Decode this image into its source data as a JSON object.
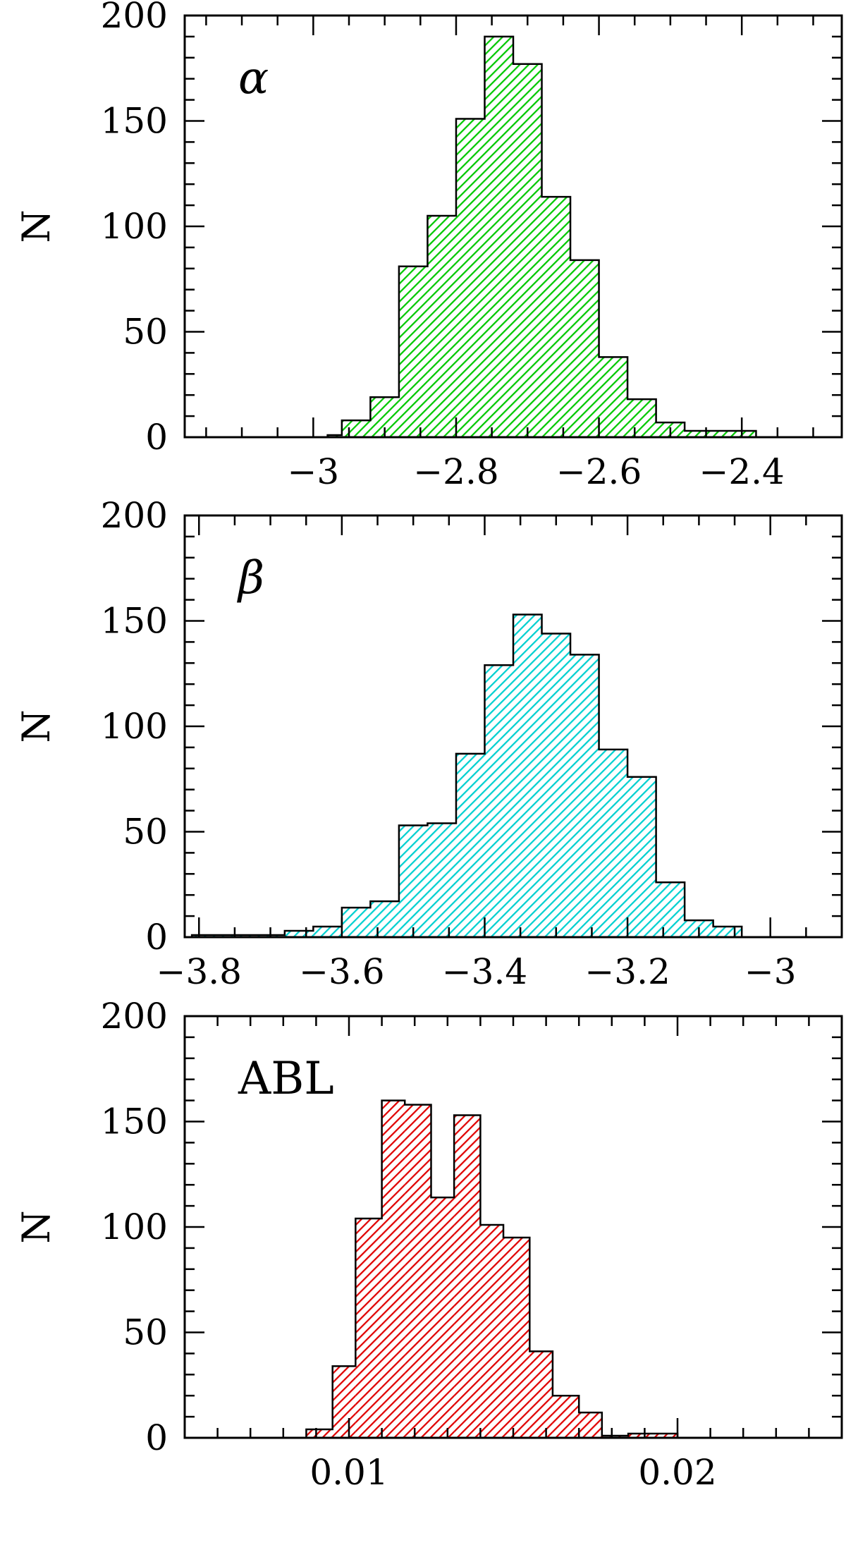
{
  "chart_data": [
    {
      "type": "bar",
      "label": "α",
      "ylabel": "N",
      "color": "#00c800",
      "xlim": [
        -3.18,
        -2.26
      ],
      "ylim": [
        0,
        200
      ],
      "y_ticks": [
        0,
        50,
        100,
        150,
        200
      ],
      "x_ticks": [
        -3,
        -2.8,
        -2.6,
        -2.4
      ],
      "x_tick_labels": [
        "−3",
        "−2.8",
        "−2.6",
        "−2.4"
      ],
      "x_minor": 0.05,
      "y_minor": 10,
      "bins": [
        {
          "x0": -2.98,
          "x1": -2.96,
          "value": 1
        },
        {
          "x0": -2.96,
          "x1": -2.92,
          "value": 8
        },
        {
          "x0": -2.92,
          "x1": -2.88,
          "value": 19
        },
        {
          "x0": -2.88,
          "x1": -2.84,
          "value": 81
        },
        {
          "x0": -2.84,
          "x1": -2.8,
          "value": 105
        },
        {
          "x0": -2.8,
          "x1": -2.76,
          "value": 151
        },
        {
          "x0": -2.76,
          "x1": -2.72,
          "value": 190
        },
        {
          "x0": -2.72,
          "x1": -2.68,
          "value": 177
        },
        {
          "x0": -2.68,
          "x1": -2.64,
          "value": 114
        },
        {
          "x0": -2.64,
          "x1": -2.6,
          "value": 84
        },
        {
          "x0": -2.6,
          "x1": -2.56,
          "value": 38
        },
        {
          "x0": -2.56,
          "x1": -2.52,
          "value": 18
        },
        {
          "x0": -2.52,
          "x1": -2.48,
          "value": 7
        },
        {
          "x0": -2.48,
          "x1": -2.44,
          "value": 3
        },
        {
          "x0": -2.44,
          "x1": -2.38,
          "value": 3
        }
      ]
    },
    {
      "type": "bar",
      "label": "β",
      "ylabel": "N",
      "color": "#00d0d0",
      "xlim": [
        -3.82,
        -2.9
      ],
      "ylim": [
        0,
        200
      ],
      "y_ticks": [
        0,
        50,
        100,
        150,
        200
      ],
      "x_ticks": [
        -3.8,
        -3.6,
        -3.4,
        -3.2,
        -3
      ],
      "x_tick_labels": [
        "−3.8",
        "−3.6",
        "−3.4",
        "−3.2",
        "−3"
      ],
      "x_minor": 0.05,
      "y_minor": 10,
      "bins": [
        {
          "x0": -3.81,
          "x1": -3.68,
          "value": 1
        },
        {
          "x0": -3.68,
          "x1": -3.64,
          "value": 3
        },
        {
          "x0": -3.64,
          "x1": -3.6,
          "value": 5
        },
        {
          "x0": -3.6,
          "x1": -3.56,
          "value": 14
        },
        {
          "x0": -3.56,
          "x1": -3.52,
          "value": 17
        },
        {
          "x0": -3.52,
          "x1": -3.48,
          "value": 53
        },
        {
          "x0": -3.48,
          "x1": -3.44,
          "value": 54
        },
        {
          "x0": -3.44,
          "x1": -3.4,
          "value": 87
        },
        {
          "x0": -3.4,
          "x1": -3.36,
          "value": 129
        },
        {
          "x0": -3.36,
          "x1": -3.32,
          "value": 153
        },
        {
          "x0": -3.32,
          "x1": -3.28,
          "value": 144
        },
        {
          "x0": -3.28,
          "x1": -3.24,
          "value": 134
        },
        {
          "x0": -3.24,
          "x1": -3.2,
          "value": 89
        },
        {
          "x0": -3.2,
          "x1": -3.16,
          "value": 76
        },
        {
          "x0": -3.16,
          "x1": -3.12,
          "value": 26
        },
        {
          "x0": -3.12,
          "x1": -3.08,
          "value": 8
        },
        {
          "x0": -3.08,
          "x1": -3.04,
          "value": 5
        }
      ]
    },
    {
      "type": "bar",
      "label": "ABL",
      "ylabel": "N",
      "color": "#e00000",
      "xlim": [
        0.005,
        0.025
      ],
      "ylim": [
        0,
        200
      ],
      "y_ticks": [
        0,
        50,
        100,
        150,
        200
      ],
      "x_ticks": [
        0.01,
        0.02
      ],
      "x_tick_labels": [
        "0.01",
        "0.02"
      ],
      "x_minor": 0.001,
      "y_minor": 10,
      "bins": [
        {
          "x0": 0.0087,
          "x1": 0.0095,
          "value": 4
        },
        {
          "x0": 0.0095,
          "x1": 0.0102,
          "value": 34
        },
        {
          "x0": 0.0102,
          "x1": 0.011,
          "value": 104
        },
        {
          "x0": 0.011,
          "x1": 0.0117,
          "value": 160
        },
        {
          "x0": 0.0117,
          "x1": 0.0125,
          "value": 158
        },
        {
          "x0": 0.0125,
          "x1": 0.0132,
          "value": 114
        },
        {
          "x0": 0.0132,
          "x1": 0.014,
          "value": 153
        },
        {
          "x0": 0.014,
          "x1": 0.0147,
          "value": 101
        },
        {
          "x0": 0.0147,
          "x1": 0.0155,
          "value": 95
        },
        {
          "x0": 0.0155,
          "x1": 0.0162,
          "value": 41
        },
        {
          "x0": 0.0162,
          "x1": 0.017,
          "value": 20
        },
        {
          "x0": 0.017,
          "x1": 0.0177,
          "value": 12
        },
        {
          "x0": 0.0177,
          "x1": 0.0185,
          "value": 1
        },
        {
          "x0": 0.0185,
          "x1": 0.02,
          "value": 2
        }
      ]
    }
  ]
}
